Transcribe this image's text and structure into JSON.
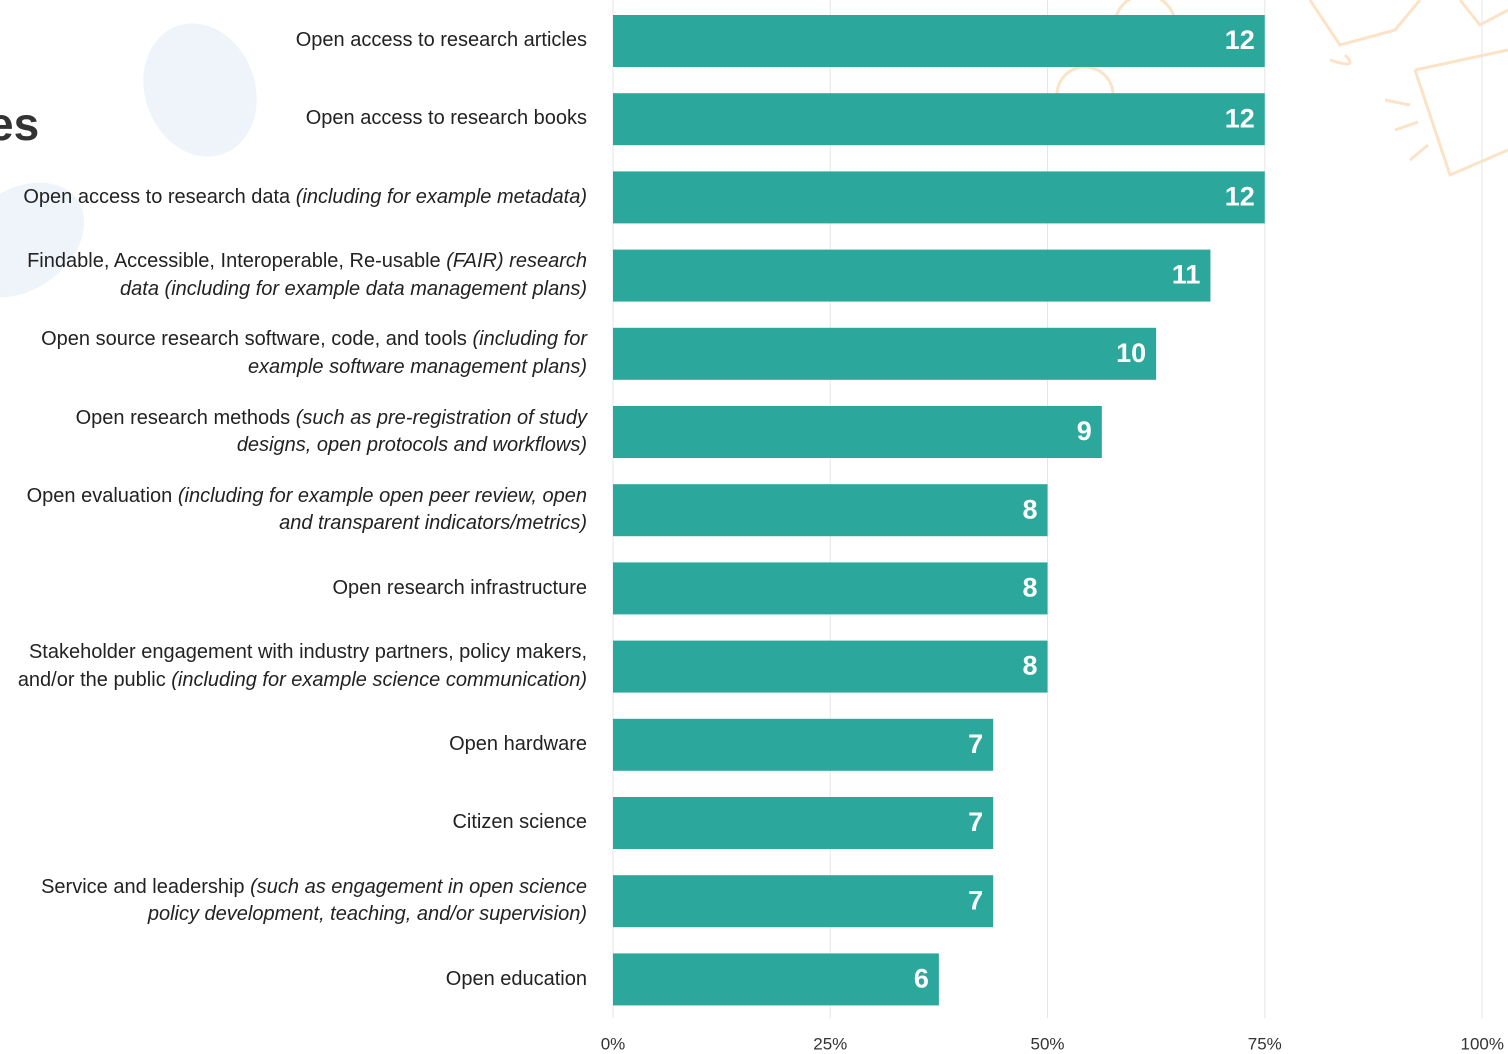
{
  "chart_data": {
    "type": "bar",
    "orientation": "horizontal",
    "title": "es",
    "categories": [
      "Open access to research articles",
      "Open access to research books",
      "Open access to research data (including for example metadata)",
      "Findable, Accessible, Interoperable, Re-usable (FAIR) research data (including for example data management plans)",
      "Open source research software, code, and tools (including for example software management plans)",
      "Open research methods (such as pre-registration of study designs, open protocols and workflows)",
      "Open evaluation (including for example open peer review, open and transparent indicators/metrics)",
      "Open research infrastructure",
      "Stakeholder engagement with industry partners, policy makers, and/or the public (including for example science communication)",
      "Open hardware",
      "Citizen science",
      "Service and leadership (such as engagement in open science policy development, teaching, and/or supervision)",
      "Open education"
    ],
    "values": [
      75,
      75,
      75,
      68.75,
      62.5,
      56.25,
      50,
      50,
      50,
      43.75,
      43.75,
      43.75,
      37.5
    ],
    "counts": [
      12,
      12,
      12,
      11,
      10,
      9,
      8,
      8,
      8,
      7,
      7,
      7,
      6
    ],
    "color": "#2ba89b",
    "xlim": [
      0,
      100
    ],
    "xticks": [
      {
        "value": 0,
        "label": "0%"
      },
      {
        "value": 25,
        "label": "25%"
      },
      {
        "value": 50,
        "label": "50%"
      },
      {
        "value": 75,
        "label": "75%"
      },
      {
        "value": 100,
        "label": "100%"
      }
    ],
    "grid": true
  }
}
